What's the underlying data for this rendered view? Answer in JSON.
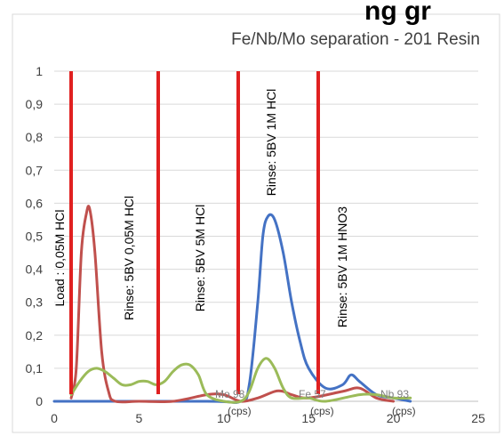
{
  "chart_data": {
    "type": "line",
    "title": "Fe/Nb/Mo separation - 201 Resin",
    "top_fragment": "ng gr",
    "xlim": [
      0,
      25
    ],
    "ylim": [
      0,
      1
    ],
    "x_ticks": [
      "0",
      "5",
      "10",
      "15",
      "20",
      "25"
    ],
    "y_ticks": [
      "0",
      "0,1",
      "0,2",
      "0,3",
      "0,4",
      "0,5",
      "0,6",
      "0,7",
      "0,8",
      "0,9",
      "1"
    ],
    "grid": "horizontal",
    "series": [
      {
        "name": "Mo 98",
        "unit": "(cps)",
        "color": "#4472c4",
        "x": [
          0,
          9,
          11,
          11.5,
          12,
          12.3,
          12.6,
          13,
          13.5,
          14,
          14.5,
          15,
          16,
          17,
          17.5,
          18,
          19,
          20,
          21
        ],
        "y": [
          0,
          0,
          0,
          0.05,
          0.3,
          0.5,
          0.56,
          0.55,
          0.45,
          0.3,
          0.18,
          0.1,
          0.04,
          0.05,
          0.08,
          0.06,
          0.02,
          0.01,
          0
        ]
      },
      {
        "name": "Fe 57",
        "unit": "(cps)",
        "color": "#c0504d",
        "x": [
          1,
          1.3,
          1.6,
          1.9,
          2.1,
          2.4,
          2.8,
          3.2,
          3.6,
          5,
          7,
          9,
          10,
          11,
          12,
          13,
          13.5,
          14,
          15,
          17,
          18,
          19,
          20
        ],
        "y": [
          0.01,
          0.1,
          0.45,
          0.57,
          0.58,
          0.45,
          0.15,
          0.03,
          0,
          0,
          0,
          0.02,
          0.02,
          0,
          0.01,
          0.03,
          0.03,
          0.02,
          0.01,
          0.03,
          0.04,
          0.01,
          0
        ]
      },
      {
        "name": "Nb 93",
        "unit": "(cps)",
        "color": "#9bbb59",
        "x": [
          1,
          1.5,
          2,
          2.5,
          3,
          3.5,
          4,
          4.5,
          5,
          5.5,
          6,
          6.5,
          7,
          7.5,
          8,
          8.5,
          9,
          10,
          11,
          11.5,
          12,
          12.5,
          13,
          13.5,
          14,
          15,
          16,
          18,
          19,
          20,
          21
        ],
        "y": [
          0.02,
          0.06,
          0.09,
          0.1,
          0.09,
          0.07,
          0.05,
          0.05,
          0.06,
          0.06,
          0.05,
          0.06,
          0.09,
          0.11,
          0.11,
          0.08,
          0.02,
          0,
          0,
          0.03,
          0.1,
          0.13,
          0.1,
          0.04,
          0.01,
          0.01,
          0,
          0.02,
          0.02,
          0.01,
          0.01
        ]
      }
    ],
    "markers": [
      {
        "x": 1,
        "label": "Load : 0,05M HCl"
      },
      {
        "x": 6,
        "label": "Rinse: 5BV 0,05M HCl"
      },
      {
        "x": 10.5,
        "label": "Rinse: 5BV 5M HCl"
      },
      {
        "x": 15.1,
        "label": "Rinse: 5BV 1M HCl"
      },
      {
        "x": 15.3,
        "label": "Rinse: 5BV 1M HNO3"
      }
    ],
    "colors": {
      "marker": "#e02020",
      "grid": "#d9d9d9",
      "axis": "#bfbfbf",
      "chart_border": "#d9d9d9"
    }
  }
}
